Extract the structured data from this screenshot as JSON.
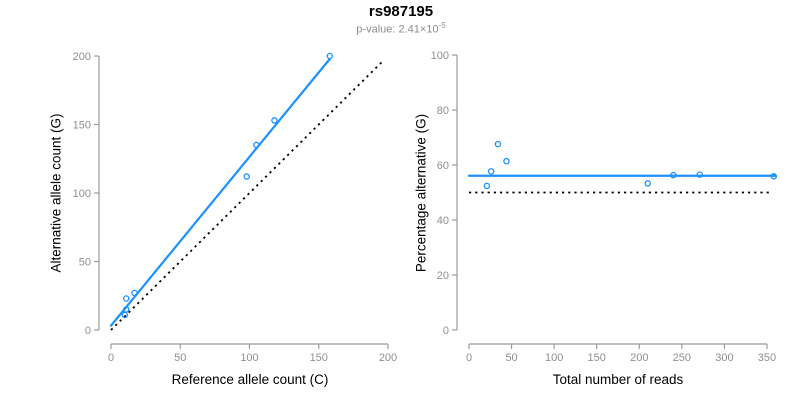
{
  "header": {
    "title": "rs987195",
    "subtitle_prefix": "p-value: 2.41×10",
    "subtitle_exponent": "-5"
  },
  "colors": {
    "line_blue": "#1E90FF",
    "dotted_black": "#000000",
    "axis_gray": "#9b9b9b",
    "tick_label_gray": "#8f8f8f",
    "subtitle_gray": "#8c8c8c",
    "label_black": "#000000",
    "background": "#FFFFFF"
  },
  "chart_data": [
    {
      "type": "scatter",
      "name": "allele-counts-scatter",
      "xlabel": "Reference allele count (C)",
      "ylabel": "Alternative allele count (G)",
      "xlim": [
        0,
        200
      ],
      "ylim": [
        0,
        200
      ],
      "xticks": [
        0,
        50,
        100,
        150,
        200
      ],
      "yticks": [
        0,
        50,
        100,
        150,
        200
      ],
      "grid": false,
      "point_style": "open-circle",
      "points": [
        [
          10,
          11
        ],
        [
          11,
          15
        ],
        [
          11,
          23
        ],
        [
          17,
          27
        ],
        [
          98,
          112
        ],
        [
          105,
          135
        ],
        [
          118,
          153
        ],
        [
          158,
          200
        ]
      ],
      "regression": {
        "slope": 1.23,
        "intercept": 3.2
      },
      "lines": [
        {
          "name": "regression-line",
          "x1": 0,
          "y1": 3.2,
          "x2": 158,
          "y2": 197.9,
          "style": "solid",
          "color": "line_blue"
        },
        {
          "name": "identity-line",
          "x1": 0,
          "y1": 0,
          "x2": 196,
          "y2": 196,
          "style": "dotted",
          "color": "dotted_black"
        }
      ]
    },
    {
      "type": "scatter",
      "name": "percentage-vs-reads-scatter",
      "xlabel": "Total number of reads",
      "ylabel": "Percentage alternative (G)",
      "xlim": [
        0,
        360
      ],
      "ylim": [
        0,
        100
      ],
      "xticks": [
        0,
        50,
        100,
        150,
        200,
        250,
        300,
        350
      ],
      "yticks": [
        0,
        20,
        40,
        60,
        80,
        100
      ],
      "grid": false,
      "point_style": "open-circle",
      "points": [
        [
          21,
          52.4
        ],
        [
          26,
          57.7
        ],
        [
          34,
          67.6
        ],
        [
          44,
          61.4
        ],
        [
          210,
          53.3
        ],
        [
          240,
          56.3
        ],
        [
          271,
          56.5
        ],
        [
          358,
          55.9
        ]
      ],
      "mean_percentage": 56.1,
      "reference_percentage": 50,
      "lines": [
        {
          "name": "mean-percentage-line",
          "x1": 0,
          "y1": 56.1,
          "x2": 360,
          "y2": 56.1,
          "style": "solid",
          "color": "line_blue"
        },
        {
          "name": "fifty-percent-line",
          "x1": 0,
          "y1": 50,
          "x2": 353,
          "y2": 50,
          "style": "dotted",
          "color": "dotted_black"
        }
      ]
    }
  ]
}
